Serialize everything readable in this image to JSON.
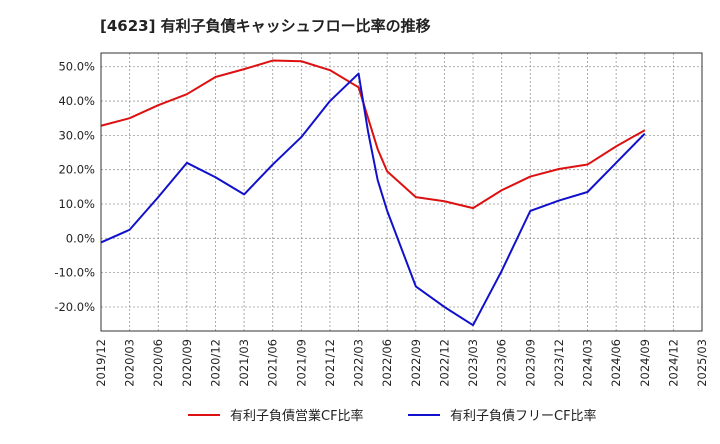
{
  "chart_data": {
    "type": "line",
    "title": "[4623]  有利子負債キャッシュフロー比率の推移",
    "xlabel": "",
    "ylabel": "",
    "x": [
      "2019/12",
      "2020/03",
      "2020/06",
      "2020/09",
      "2020/12",
      "2021/03",
      "2021/06",
      "2021/09",
      "2021/12",
      "2022/03",
      "2022/06",
      "2022/09",
      "2022/12",
      "2023/03",
      "2023/06",
      "2023/09",
      "2023/12",
      "2024/03",
      "2024/06",
      "2024/09",
      "2024/12",
      "2025/03"
    ],
    "ylim": [
      -27,
      54
    ],
    "yticks": [
      -20,
      -10,
      0,
      10,
      20,
      30,
      40,
      50
    ],
    "ytick_labels": [
      "-20.0%",
      "-10.0%",
      "0.0%",
      "10.0%",
      "20.0%",
      "30.0%",
      "40.0%",
      "50.0%"
    ],
    "grid": true,
    "legend_position": "bottom",
    "series": [
      {
        "name": "有利子負債営業CF比率",
        "color": "#dd1111",
        "points": [
          {
            "x": "2019/12",
            "y": 32.8
          },
          {
            "x": "2020/03",
            "y": 35.0
          },
          {
            "x": "2020/06",
            "y": 38.8
          },
          {
            "x": "2020/09",
            "y": 42.0
          },
          {
            "x": "2020/12",
            "y": 47.0
          },
          {
            "x": "2021/03",
            "y": 49.3
          },
          {
            "x": "2021/06",
            "y": 51.8
          },
          {
            "x": "2021/09",
            "y": 51.6
          },
          {
            "x": "2021/12",
            "y": 49.0
          },
          {
            "x": "2022/03",
            "y": 44.0
          },
          {
            "x": "2022/04",
            "y": 35.0
          },
          {
            "x": "2022/05",
            "y": 26.0
          },
          {
            "x": "2022/06",
            "y": 19.5
          },
          {
            "x": "2022/09",
            "y": 12.0
          },
          {
            "x": "2022/12",
            "y": 10.8
          },
          {
            "x": "2023/03",
            "y": 8.8
          },
          {
            "x": "2023/06",
            "y": 14.0
          },
          {
            "x": "2023/09",
            "y": 18.0
          },
          {
            "x": "2023/12",
            "y": 20.2
          },
          {
            "x": "2024/03",
            "y": 21.5
          },
          {
            "x": "2024/06",
            "y": 26.8
          },
          {
            "x": "2024/09",
            "y": 31.5
          }
        ]
      },
      {
        "name": "有利子負債フリーCF比率",
        "color": "#1111cc",
        "points": [
          {
            "x": "2019/12",
            "y": -1.2
          },
          {
            "x": "2020/03",
            "y": 2.5
          },
          {
            "x": "2020/06",
            "y": 12.0
          },
          {
            "x": "2020/09",
            "y": 22.0
          },
          {
            "x": "2020/12",
            "y": 17.8
          },
          {
            "x": "2021/03",
            "y": 12.8
          },
          {
            "x": "2021/06",
            "y": 21.5
          },
          {
            "x": "2021/09",
            "y": 29.5
          },
          {
            "x": "2021/12",
            "y": 40.0
          },
          {
            "x": "2022/03",
            "y": 48.0
          },
          {
            "x": "2022/04",
            "y": 31.0
          },
          {
            "x": "2022/05",
            "y": 17.0
          },
          {
            "x": "2022/06",
            "y": 8.0
          },
          {
            "x": "2022/09",
            "y": -14.0
          },
          {
            "x": "2022/12",
            "y": -20.0
          },
          {
            "x": "2023/03",
            "y": -25.3
          },
          {
            "x": "2023/06",
            "y": -9.5
          },
          {
            "x": "2023/09",
            "y": 8.0
          },
          {
            "x": "2023/12",
            "y": 11.0
          },
          {
            "x": "2024/03",
            "y": 13.5
          },
          {
            "x": "2024/06",
            "y": 22.0
          },
          {
            "x": "2024/09",
            "y": 30.5
          }
        ]
      }
    ]
  }
}
